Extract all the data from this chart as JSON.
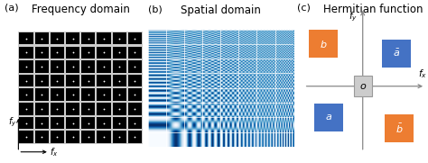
{
  "panel_a_title": "Frequency domain",
  "panel_b_title": "Spatial domain",
  "panel_c_title": "Hermitian function",
  "panel_a_label": "(a)",
  "panel_b_label": "(b)",
  "panel_c_label": "(c)",
  "grid_n": 8,
  "bg_color": "#000000",
  "grid_color": "#888888",
  "dot_color": "#ffffff",
  "blue_color": "#4472C4",
  "orange_color": "#ED7D31",
  "axis_color": "#888888",
  "title_fontsize": 8.5,
  "label_fontsize": 8
}
